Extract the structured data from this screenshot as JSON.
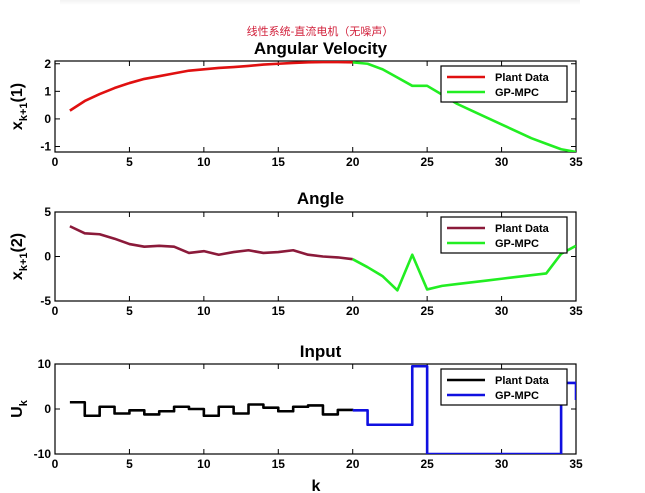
{
  "figure": {
    "supertitle": "线性系统-直流电机（无噪声）",
    "xlabel": "k"
  },
  "chart_data": [
    {
      "type": "line",
      "title": "Angular Velocity",
      "ylabel": "x",
      "ylabel_sub": "k+1",
      "ylabel_suffix": "(1)",
      "xlim": [
        0,
        35
      ],
      "ylim": [
        -1.2,
        2.1
      ],
      "xticks": [
        0,
        5,
        10,
        15,
        20,
        25,
        30,
        35
      ],
      "yticks": [
        -1,
        0,
        1,
        2
      ],
      "legend_position": "top-right",
      "series": [
        {
          "name": "Plant Data",
          "color": "#e01010",
          "x": [
            1,
            2,
            3,
            4,
            5,
            6,
            7,
            8,
            9,
            10,
            11,
            12,
            13,
            14,
            15,
            16,
            17,
            18,
            19,
            20
          ],
          "y": [
            0.3,
            0.65,
            0.9,
            1.12,
            1.3,
            1.45,
            1.55,
            1.65,
            1.75,
            1.8,
            1.85,
            1.88,
            1.92,
            1.97,
            2.0,
            2.03,
            2.05,
            2.06,
            2.06,
            2.05
          ]
        },
        {
          "name": "GP-MPC",
          "color": "#22ee22",
          "x": [
            20,
            21,
            22,
            23,
            24,
            25,
            26,
            27,
            28,
            29,
            30,
            31,
            32,
            33,
            34,
            35
          ],
          "y": [
            2.05,
            2.0,
            1.8,
            1.5,
            1.2,
            1.2,
            0.88,
            0.55,
            0.3,
            0.05,
            -0.2,
            -0.45,
            -0.7,
            -0.9,
            -1.1,
            -1.2
          ]
        }
      ]
    },
    {
      "type": "line",
      "title": "Angle",
      "ylabel": "x",
      "ylabel_sub": "k+1",
      "ylabel_suffix": "(2)",
      "xlim": [
        0,
        35
      ],
      "ylim": [
        -5,
        5
      ],
      "xticks": [
        0,
        5,
        10,
        15,
        20,
        25,
        30,
        35
      ],
      "yticks": [
        -5,
        0,
        5
      ],
      "legend_position": "top-right",
      "series": [
        {
          "name": "Plant Data",
          "color": "#8b1a3a",
          "x": [
            1,
            2,
            3,
            4,
            5,
            6,
            7,
            8,
            9,
            10,
            11,
            12,
            13,
            14,
            15,
            16,
            17,
            18,
            19,
            20
          ],
          "y": [
            3.4,
            2.6,
            2.5,
            2.0,
            1.4,
            1.1,
            1.2,
            1.1,
            0.4,
            0.6,
            0.2,
            0.5,
            0.7,
            0.4,
            0.5,
            0.7,
            0.2,
            0.0,
            -0.1,
            -0.3
          ]
        },
        {
          "name": "GP-MPC",
          "color": "#22ee22",
          "x": [
            20,
            21,
            22,
            23,
            24,
            25,
            26,
            27,
            28,
            29,
            30,
            31,
            32,
            33,
            34,
            35
          ],
          "y": [
            -0.3,
            -1.2,
            -2.2,
            -3.8,
            0.2,
            -3.7,
            -3.3,
            -3.1,
            -2.9,
            -2.7,
            -2.5,
            -2.3,
            -2.1,
            -1.9,
            0.3,
            1.2
          ]
        }
      ]
    },
    {
      "type": "line",
      "title": "Input",
      "ylabel": "U",
      "ylabel_sub": "k",
      "ylabel_suffix": "",
      "xlim": [
        0,
        35
      ],
      "ylim": [
        -10,
        10
      ],
      "xticks": [
        0,
        5,
        10,
        15,
        20,
        25,
        30,
        35
      ],
      "yticks": [
        -10,
        0,
        10
      ],
      "legend_position": "top-right",
      "step": true,
      "series": [
        {
          "name": "Plant Data",
          "color": "#000000",
          "x": [
            1,
            2,
            3,
            4,
            5,
            6,
            7,
            8,
            9,
            10,
            11,
            12,
            13,
            14,
            15,
            16,
            17,
            18,
            19,
            20
          ],
          "y": [
            1.5,
            -1.5,
            0.5,
            -1.0,
            -0.3,
            -1.2,
            -0.5,
            0.5,
            0.0,
            -1.5,
            0.5,
            -1.0,
            1.0,
            0.3,
            -0.5,
            0.5,
            0.8,
            -1.2,
            -0.2,
            -0.3
          ]
        },
        {
          "name": "GP-MPC",
          "color": "#1010e0",
          "x": [
            20,
            21,
            22,
            23,
            24,
            25,
            26,
            27,
            28,
            29,
            30,
            31,
            32,
            33,
            34,
            35
          ],
          "y": [
            -0.3,
            -3.5,
            -3.5,
            -3.5,
            9.5,
            -10.0,
            -10.0,
            -10.0,
            -10.0,
            -10.0,
            -10.0,
            -10.0,
            -10.0,
            -10.0,
            5.8,
            2.0
          ]
        }
      ]
    }
  ]
}
